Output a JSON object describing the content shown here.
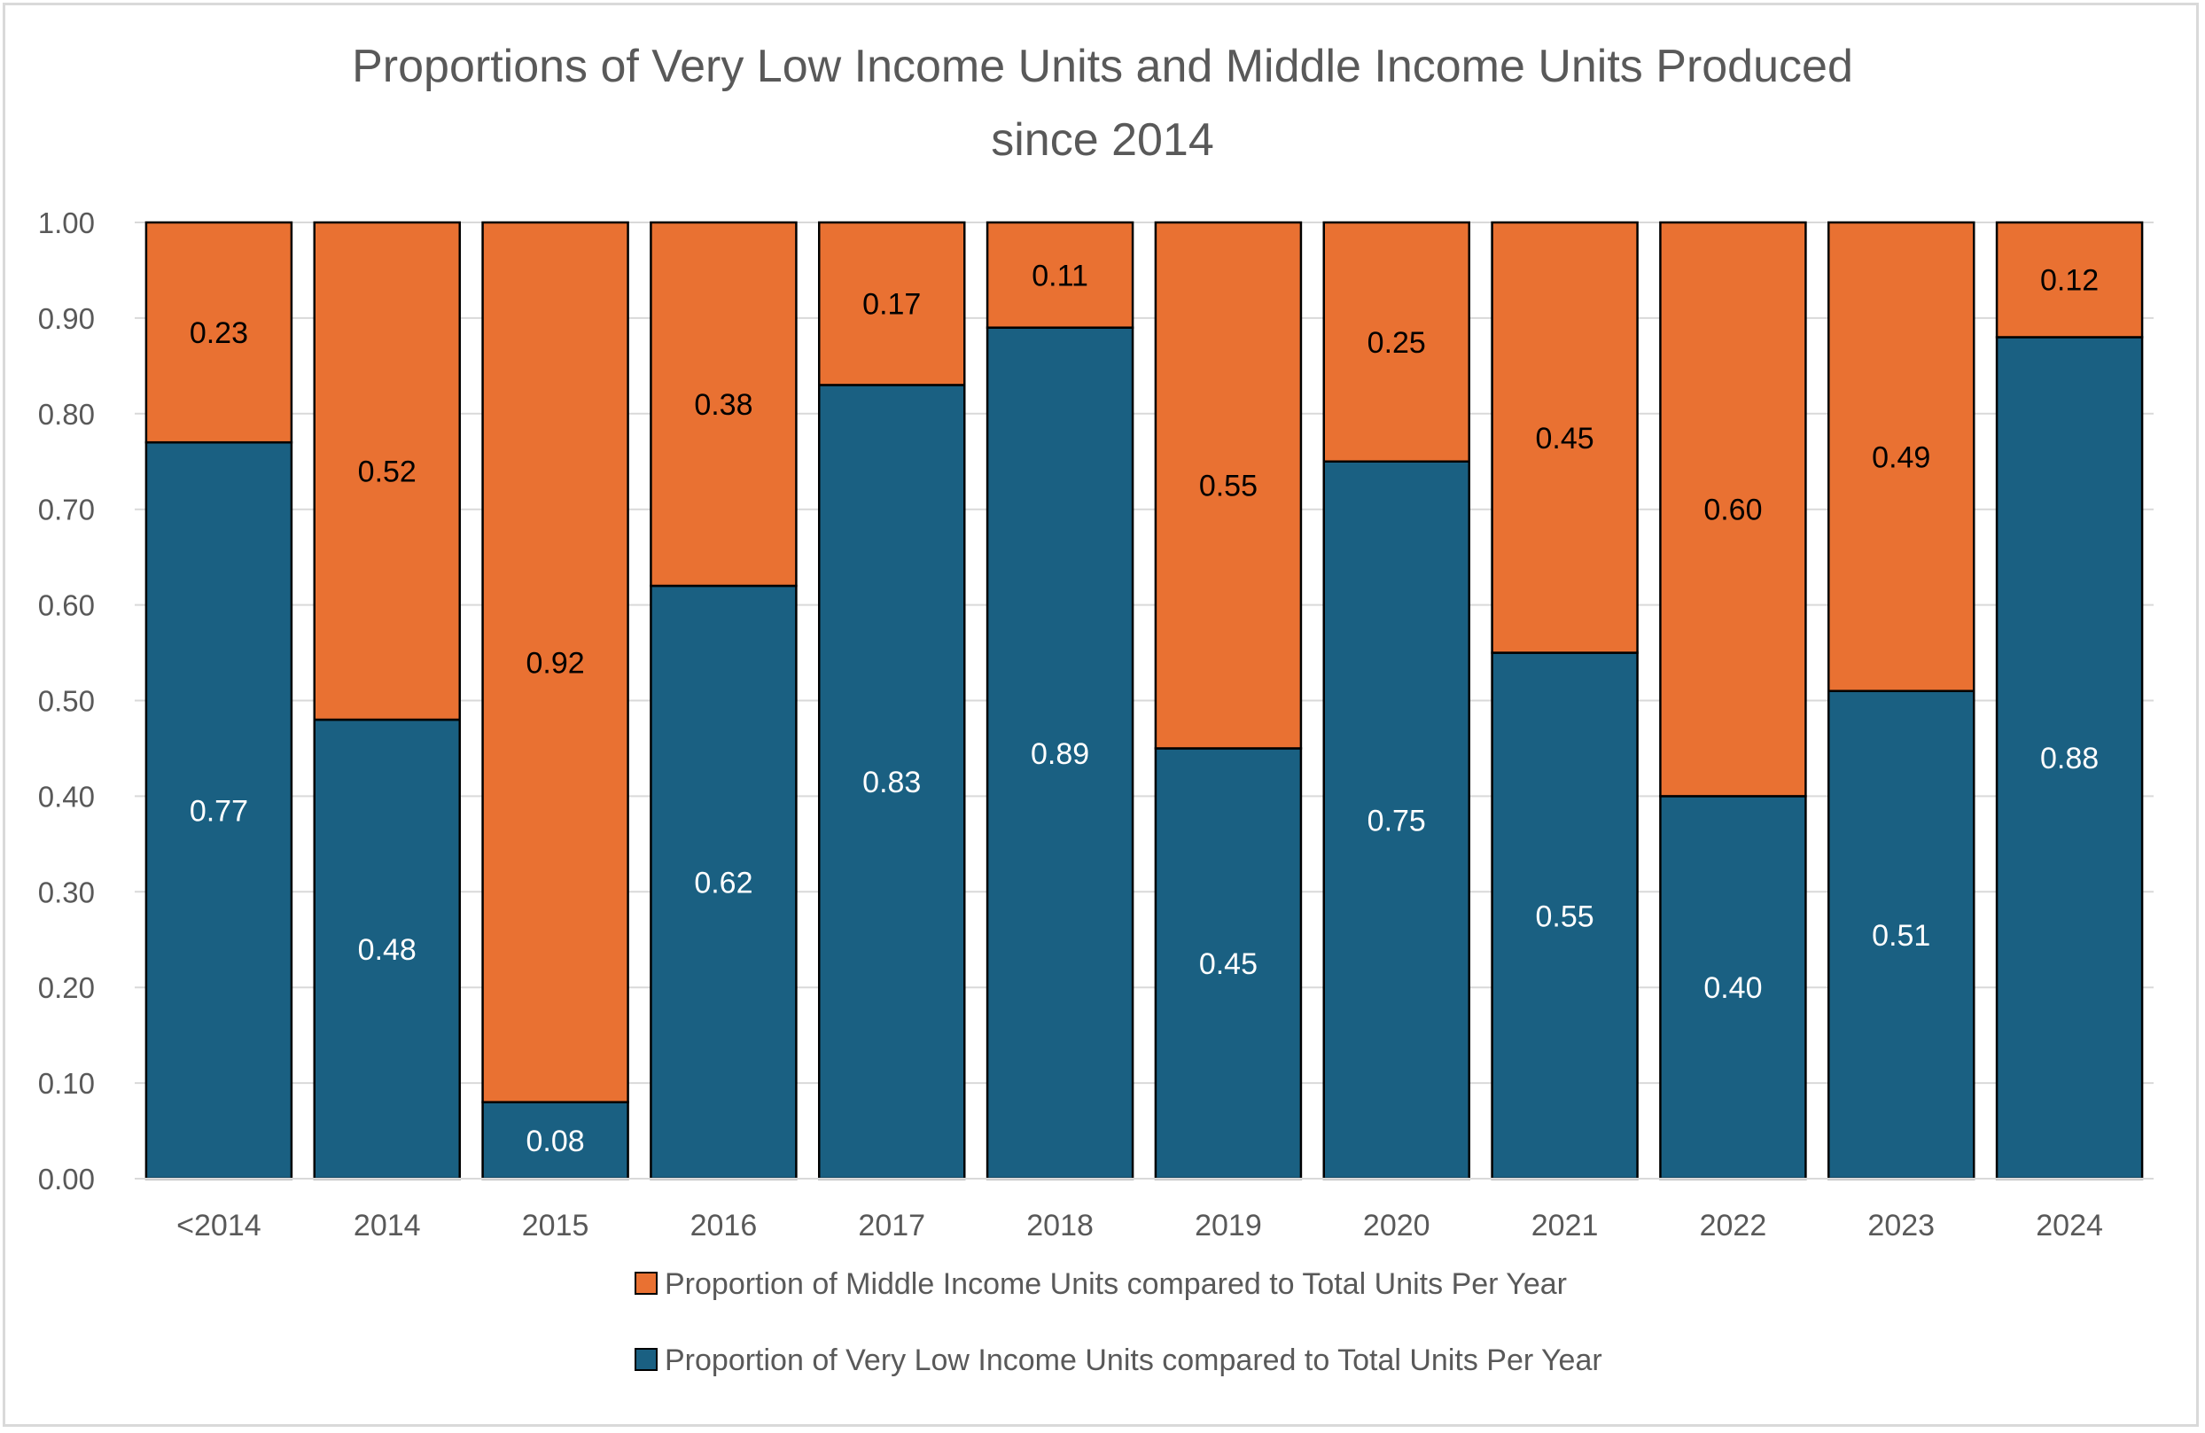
{
  "chart_data": {
    "type": "bar",
    "stacked": true,
    "title": "Proportions of Very Low Income Units and Middle Income Units Produced since 2014",
    "title_lines": [
      "Proportions of Very Low Income Units and Middle Income Units Produced",
      "since 2014"
    ],
    "categories": [
      "<2014",
      "2014",
      "2015",
      "2016",
      "2017",
      "2018",
      "2019",
      "2020",
      "2021",
      "2022",
      "2023",
      "2024"
    ],
    "series": [
      {
        "name": "Proportion of Very Low Income Units compared to Total Units Per Year",
        "color": "#1a6082",
        "label_color": "#ffffff",
        "values": [
          0.77,
          0.48,
          0.08,
          0.62,
          0.83,
          0.89,
          0.45,
          0.75,
          0.55,
          0.4,
          0.51,
          0.88
        ]
      },
      {
        "name": "Proportion of Middle Income Units compared to Total Units Per Year",
        "color": "#e97132",
        "label_color": "#000000",
        "values": [
          0.23,
          0.52,
          0.92,
          0.38,
          0.17,
          0.11,
          0.55,
          0.25,
          0.45,
          0.6,
          0.49,
          0.12
        ]
      }
    ],
    "data_labels": [
      [
        "0.77",
        "0.48",
        "0.08",
        "0.62",
        "0.83",
        "0.89",
        "0.45",
        "0.75",
        "0.55",
        "0.40",
        "0.51",
        "0.88"
      ],
      [
        "0.23",
        "0.52",
        "0.92",
        "0.38",
        "0.17",
        "0.11",
        "0.55",
        "0.25",
        "0.45",
        "0.60",
        "0.49",
        "0.12"
      ]
    ],
    "ylim": [
      0,
      1
    ],
    "yticks": [
      "0.00",
      "0.10",
      "0.20",
      "0.30",
      "0.40",
      "0.50",
      "0.60",
      "0.70",
      "0.80",
      "0.90",
      "1.00"
    ],
    "xlabel": "",
    "ylabel": "",
    "grid": true,
    "legend_position": "bottom",
    "legend_order": [
      1,
      0
    ]
  }
}
